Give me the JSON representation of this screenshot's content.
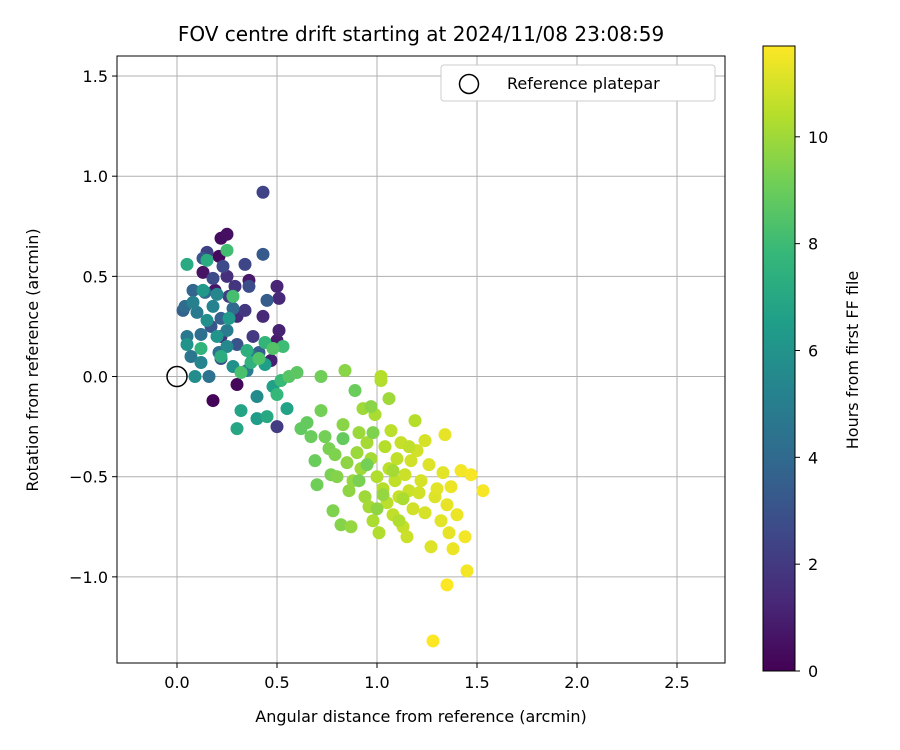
{
  "chart_data": {
    "type": "scatter",
    "title": "FOV centre drift starting at 2024/11/08 23:08:59",
    "xlabel": "Angular distance from reference (arcmin)",
    "ylabel": "Rotation from reference (arcmin)",
    "xlim": [
      -0.3,
      2.74
    ],
    "ylim": [
      -1.43,
      1.6
    ],
    "xticks": [
      0.0,
      0.5,
      1.0,
      1.5,
      2.0,
      2.5
    ],
    "xtick_labels": [
      "0.0",
      "0.5",
      "1.0",
      "1.5",
      "2.0",
      "2.5"
    ],
    "yticks": [
      -1.0,
      -0.5,
      0.0,
      0.5,
      1.0,
      1.5
    ],
    "ytick_labels": [
      "−1.0",
      "−0.5",
      "0.0",
      "0.5",
      "1.0",
      "1.5"
    ],
    "grid": true,
    "legend": {
      "placement": "upper right",
      "entries": [
        "Reference platepar"
      ]
    },
    "reference_point": {
      "x": 0.0,
      "y": 0.0,
      "label": "Reference platepar",
      "marker": "open-circle"
    },
    "colorbar": {
      "label": "Hours from first FF file",
      "colormap": "viridis",
      "range": [
        0,
        11.7
      ],
      "ticks": [
        0,
        2,
        4,
        6,
        8,
        10
      ],
      "tick_labels": [
        "0",
        "2",
        "4",
        "6",
        "8",
        "10"
      ]
    },
    "colormap_stops": [
      "#440154",
      "#482878",
      "#3e4989",
      "#31688e",
      "#26828e",
      "#1f9e89",
      "#35b779",
      "#6ece58",
      "#b5de2b",
      "#fde725"
    ],
    "series": [
      {
        "color_by": "hours",
        "points": [
          [
            0.18,
            -0.12,
            0.1
          ],
          [
            0.3,
            -0.04,
            0.2
          ],
          [
            0.21,
            0.6,
            0.3
          ],
          [
            0.22,
            0.69,
            0.4
          ],
          [
            0.25,
            0.71,
            0.5
          ],
          [
            0.13,
            0.52,
            0.6
          ],
          [
            0.19,
            0.43,
            0.7
          ],
          [
            0.36,
            0.48,
            0.8
          ],
          [
            0.5,
            0.18,
            0.9
          ],
          [
            0.47,
            0.08,
            1.0
          ],
          [
            0.51,
            0.23,
            1.1
          ],
          [
            0.5,
            0.45,
            1.2
          ],
          [
            0.51,
            0.39,
            1.3
          ],
          [
            0.43,
            0.3,
            1.4
          ],
          [
            0.3,
            0.3,
            1.5
          ],
          [
            0.25,
            0.5,
            1.6
          ],
          [
            0.22,
            0.2,
            1.7
          ],
          [
            0.29,
            0.45,
            1.8
          ],
          [
            0.34,
            0.33,
            1.9
          ],
          [
            0.38,
            0.2,
            2.0
          ],
          [
            0.5,
            -0.25,
            2.1
          ],
          [
            0.26,
            0.4,
            2.2
          ],
          [
            0.15,
            0.62,
            2.3
          ],
          [
            0.43,
            0.92,
            2.4
          ],
          [
            0.34,
            0.56,
            2.5
          ],
          [
            0.23,
            0.55,
            2.6
          ],
          [
            0.18,
            0.49,
            2.7
          ],
          [
            0.36,
            0.45,
            2.8
          ],
          [
            0.22,
            0.09,
            2.9
          ],
          [
            0.3,
            0.16,
            3.0
          ],
          [
            0.17,
            0.25,
            3.1
          ],
          [
            0.13,
            0.59,
            3.2
          ],
          [
            0.43,
            0.61,
            3.3
          ],
          [
            0.45,
            0.38,
            3.4
          ],
          [
            0.41,
            0.12,
            3.5
          ],
          [
            0.22,
            0.29,
            3.6
          ],
          [
            0.03,
            0.33,
            3.7
          ],
          [
            0.08,
            0.43,
            3.8
          ],
          [
            0.14,
            0.42,
            3.9
          ],
          [
            0.28,
            0.34,
            4.0
          ],
          [
            0.04,
            0.35,
            4.1
          ],
          [
            0.12,
            0.21,
            4.2
          ],
          [
            0.21,
            0.12,
            4.3
          ],
          [
            0.16,
            0.0,
            4.4
          ],
          [
            0.38,
            0.1,
            4.5
          ],
          [
            0.07,
            0.1,
            4.6
          ],
          [
            0.05,
            0.2,
            4.7
          ],
          [
            0.1,
            0.32,
            4.8
          ],
          [
            0.25,
            0.23,
            4.9
          ],
          [
            0.35,
            0.03,
            5.0
          ],
          [
            0.08,
            0.37,
            5.1
          ],
          [
            0.18,
            0.35,
            5.2
          ],
          [
            0.12,
            0.07,
            5.3
          ],
          [
            0.2,
            0.41,
            5.4
          ],
          [
            0.25,
            0.15,
            5.5
          ],
          [
            0.4,
            -0.1,
            5.6
          ],
          [
            0.09,
            0.0,
            5.7
          ],
          [
            0.15,
            0.28,
            5.8
          ],
          [
            0.28,
            0.05,
            5.9
          ],
          [
            0.05,
            0.16,
            6.0
          ],
          [
            0.2,
            0.2,
            6.1
          ],
          [
            0.13,
            0.43,
            6.2
          ],
          [
            0.26,
            0.29,
            6.3
          ],
          [
            0.4,
            -0.21,
            6.4
          ],
          [
            0.44,
            0.06,
            6.5
          ],
          [
            0.48,
            -0.05,
            6.6
          ],
          [
            0.55,
            -0.16,
            6.7
          ],
          [
            0.32,
            -0.17,
            6.8
          ],
          [
            0.3,
            -0.26,
            6.9
          ],
          [
            0.45,
            -0.2,
            7.0
          ],
          [
            0.05,
            0.56,
            7.1
          ],
          [
            0.15,
            0.58,
            7.2
          ],
          [
            0.22,
            0.1,
            7.3
          ],
          [
            0.35,
            0.13,
            7.4
          ],
          [
            0.37,
            0.07,
            7.5
          ],
          [
            0.12,
            0.14,
            7.6
          ],
          [
            0.44,
            0.17,
            7.7
          ],
          [
            0.5,
            -0.09,
            7.8
          ],
          [
            0.52,
            -0.02,
            7.9
          ],
          [
            0.53,
            0.15,
            8.0
          ],
          [
            0.25,
            0.63,
            8.1
          ],
          [
            0.28,
            0.4,
            8.2
          ],
          [
            0.32,
            0.02,
            8.3
          ],
          [
            0.41,
            0.09,
            8.4
          ],
          [
            0.48,
            0.14,
            8.5
          ],
          [
            0.56,
            0.0,
            8.6
          ],
          [
            0.6,
            0.02,
            8.7
          ],
          [
            0.62,
            -0.26,
            8.8
          ],
          [
            0.65,
            -0.23,
            8.9
          ],
          [
            0.67,
            -0.3,
            9.0
          ],
          [
            0.69,
            -0.42,
            9.0
          ],
          [
            0.7,
            -0.54,
            9.1
          ],
          [
            0.72,
            0.0,
            9.1
          ],
          [
            0.72,
            -0.17,
            9.2
          ],
          [
            0.74,
            -0.3,
            9.2
          ],
          [
            0.76,
            -0.36,
            9.3
          ],
          [
            0.77,
            -0.49,
            9.3
          ],
          [
            0.78,
            -0.67,
            9.4
          ],
          [
            0.79,
            -0.39,
            9.4
          ],
          [
            0.8,
            -0.5,
            9.5
          ],
          [
            0.82,
            -0.74,
            9.5
          ],
          [
            0.83,
            -0.24,
            9.6
          ],
          [
            0.84,
            0.03,
            9.6
          ],
          [
            0.85,
            -0.43,
            9.7
          ],
          [
            0.86,
            -0.57,
            9.7
          ],
          [
            0.87,
            -0.75,
            9.8
          ],
          [
            0.88,
            -0.52,
            9.8
          ],
          [
            0.9,
            -0.38,
            9.9
          ],
          [
            0.91,
            -0.28,
            9.9
          ],
          [
            0.92,
            -0.46,
            10.0
          ],
          [
            0.93,
            -0.16,
            10.0
          ],
          [
            0.94,
            -0.6,
            10.0
          ],
          [
            0.95,
            -0.33,
            10.1
          ],
          [
            0.96,
            -0.65,
            10.1
          ],
          [
            0.97,
            -0.41,
            10.1
          ],
          [
            0.98,
            -0.72,
            10.2
          ],
          [
            0.99,
            -0.19,
            10.2
          ],
          [
            1.0,
            -0.5,
            10.3
          ],
          [
            1.01,
            -0.78,
            10.3
          ],
          [
            1.02,
            -0.02,
            10.3
          ],
          [
            1.02,
            0.0,
            10.4
          ],
          [
            1.03,
            -0.56,
            10.4
          ],
          [
            1.04,
            -0.35,
            10.4
          ],
          [
            1.05,
            -0.63,
            10.5
          ],
          [
            1.06,
            -0.46,
            10.5
          ],
          [
            1.07,
            -0.27,
            10.5
          ],
          [
            1.08,
            -0.69,
            10.6
          ],
          [
            1.09,
            -0.52,
            10.6
          ],
          [
            1.1,
            -0.41,
            10.6
          ],
          [
            1.11,
            -0.6,
            10.7
          ],
          [
            1.12,
            -0.33,
            10.7
          ],
          [
            1.13,
            -0.75,
            10.7
          ],
          [
            1.14,
            -0.49,
            10.8
          ],
          [
            1.15,
            -0.8,
            10.8
          ],
          [
            1.16,
            -0.57,
            10.8
          ],
          [
            1.17,
            -0.42,
            10.9
          ],
          [
            1.18,
            -0.66,
            10.9
          ],
          [
            1.2,
            -0.37,
            10.9
          ],
          [
            1.22,
            -0.52,
            11.0
          ],
          [
            1.24,
            -0.68,
            11.0
          ],
          [
            1.26,
            -0.44,
            11.1
          ],
          [
            1.27,
            -0.85,
            11.1
          ],
          [
            1.29,
            -0.6,
            11.1
          ],
          [
            1.3,
            -0.56,
            11.2
          ],
          [
            1.32,
            -0.72,
            11.2
          ],
          [
            1.33,
            -0.48,
            11.2
          ],
          [
            1.34,
            -0.29,
            11.3
          ],
          [
            1.35,
            -0.64,
            11.3
          ],
          [
            1.36,
            -0.78,
            11.3
          ],
          [
            1.37,
            -0.55,
            11.4
          ],
          [
            1.38,
            -0.86,
            11.4
          ],
          [
            1.4,
            -0.69,
            11.4
          ],
          [
            1.42,
            -0.47,
            11.5
          ],
          [
            1.44,
            -0.8,
            11.5
          ],
          [
            1.45,
            -0.97,
            11.5
          ],
          [
            1.47,
            -0.49,
            11.6
          ],
          [
            1.53,
            -0.57,
            11.6
          ],
          [
            1.35,
            -1.04,
            11.7
          ],
          [
            1.28,
            -1.32,
            11.7
          ],
          [
            1.24,
            -0.32,
            11.0
          ],
          [
            0.89,
            -0.07,
            9.0
          ],
          [
            0.97,
            -0.15,
            9.6
          ],
          [
            1.06,
            -0.11,
            10.0
          ],
          [
            1.19,
            -0.22,
            10.4
          ],
          [
            0.95,
            -0.44,
            9.2
          ],
          [
            1.03,
            -0.59,
            9.8
          ],
          [
            1.13,
            -0.61,
            10.2
          ],
          [
            0.98,
            -0.28,
            9.4
          ],
          [
            1.08,
            -0.47,
            10.1
          ],
          [
            1.16,
            -0.35,
            10.6
          ],
          [
            0.83,
            -0.31,
            8.9
          ],
          [
            0.91,
            -0.52,
            9.3
          ],
          [
            1.0,
            -0.66,
            9.7
          ],
          [
            1.11,
            -0.72,
            10.3
          ],
          [
            1.21,
            -0.58,
            10.9
          ]
        ]
      }
    ]
  }
}
